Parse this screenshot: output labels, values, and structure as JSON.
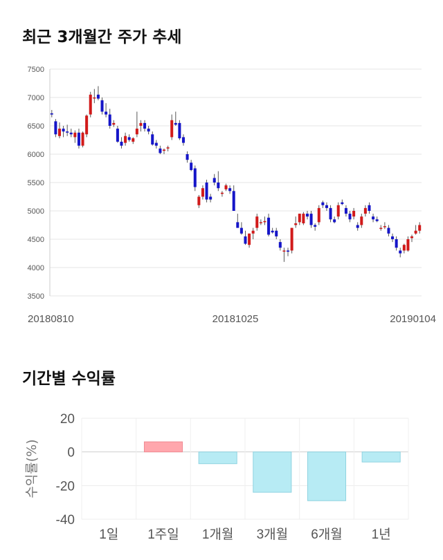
{
  "chart_data": [
    {
      "type": "candlestick",
      "title": "최근 3개월간 주가 추세",
      "y_ticks": [
        "7500",
        "7000",
        "6500",
        "6000",
        "5500",
        "5000",
        "4500",
        "4000",
        "3500"
      ],
      "ylim": [
        3500,
        7500
      ],
      "x_ticks": [
        "20180810",
        "20181025",
        "20190104"
      ],
      "up_color": "#d11a1a",
      "down_color": "#1515c8",
      "candles": [
        [
          6720,
          6780,
          6650,
          6700
        ],
        [
          6580,
          6620,
          6300,
          6350
        ],
        [
          6320,
          6560,
          6280,
          6450
        ],
        [
          6450,
          6500,
          6300,
          6400
        ],
        [
          6400,
          6520,
          6320,
          6380
        ],
        [
          6380,
          6450,
          6300,
          6350
        ],
        [
          6300,
          6420,
          6200,
          6380
        ],
        [
          6380,
          6450,
          6100,
          6150
        ],
        [
          6150,
          6400,
          6120,
          6380
        ],
        [
          6350,
          6700,
          6300,
          6680
        ],
        [
          6700,
          7100,
          6650,
          7050
        ],
        [
          7000,
          7150,
          6900,
          7000
        ],
        [
          7050,
          7200,
          6950,
          6980
        ],
        [
          6950,
          7000,
          6700,
          6750
        ],
        [
          6750,
          6900,
          6650,
          6700
        ],
        [
          6700,
          6800,
          6450,
          6500
        ],
        [
          6520,
          6600,
          6480,
          6550
        ],
        [
          6450,
          6500,
          6200,
          6220
        ],
        [
          6220,
          6300,
          6100,
          6150
        ],
        [
          6200,
          6380,
          6150,
          6320
        ],
        [
          6300,
          6350,
          6220,
          6250
        ],
        [
          6220,
          6300,
          6180,
          6280
        ],
        [
          6350,
          6750,
          6300,
          6450
        ],
        [
          6500,
          6600,
          6400,
          6550
        ],
        [
          6550,
          6600,
          6400,
          6450
        ],
        [
          6450,
          6500,
          6350,
          6400
        ],
        [
          6350,
          6400,
          6150,
          6170
        ],
        [
          6200,
          6250,
          6100,
          6150
        ],
        [
          6100,
          6150,
          6000,
          6020
        ],
        [
          6060,
          6100,
          6000,
          6080
        ],
        [
          6100,
          6150,
          6050,
          6120
        ],
        [
          6300,
          6700,
          6250,
          6600
        ],
        [
          6550,
          6750,
          6500,
          6520
        ],
        [
          6550,
          6600,
          6250,
          6280
        ],
        [
          6300,
          6350,
          6150,
          6200
        ],
        [
          6000,
          6050,
          5850,
          5900
        ],
        [
          5850,
          5900,
          5700,
          5720
        ],
        [
          5750,
          5800,
          5350,
          5420
        ],
        [
          5100,
          5280,
          5050,
          5250
        ],
        [
          5250,
          5450,
          5200,
          5400
        ],
        [
          5500,
          5550,
          5150,
          5200
        ],
        [
          5250,
          5300,
          5150,
          5200
        ],
        [
          5580,
          5650,
          5450,
          5500
        ],
        [
          5500,
          5700,
          5350,
          5400
        ],
        [
          5300,
          5350,
          5250,
          5320
        ],
        [
          5380,
          5480,
          5350,
          5450
        ],
        [
          5400,
          5450,
          5300,
          5350
        ],
        [
          5350,
          5450,
          5000,
          5000
        ],
        [
          4800,
          4950,
          4700,
          4700
        ],
        [
          4700,
          4800,
          4580,
          4600
        ],
        [
          4550,
          4650,
          4400,
          4420
        ],
        [
          4400,
          4600,
          4350,
          4600
        ],
        [
          4600,
          4700,
          4500,
          4650
        ],
        [
          4700,
          4950,
          4650,
          4900
        ],
        [
          4800,
          4850,
          4750,
          4800
        ],
        [
          4800,
          4900,
          4750,
          4820
        ],
        [
          4880,
          4950,
          4550,
          4580
        ],
        [
          4650,
          4700,
          4600,
          4620
        ],
        [
          4650,
          4700,
          4500,
          4550
        ],
        [
          4450,
          4500,
          4300,
          4350
        ],
        [
          4300,
          4350,
          4100,
          4300
        ],
        [
          4300,
          4350,
          4200,
          4280
        ],
        [
          4300,
          4700,
          4250,
          4700
        ],
        [
          4750,
          4900,
          4700,
          4780
        ],
        [
          4800,
          4950,
          4750,
          4950
        ],
        [
          4780,
          4980,
          4750,
          4950
        ],
        [
          4950,
          5000,
          4850,
          4900
        ],
        [
          4950,
          5000,
          4700,
          4750
        ],
        [
          4750,
          4780,
          4650,
          4720
        ],
        [
          4800,
          5100,
          4750,
          5050
        ],
        [
          5150,
          5180,
          5050,
          5100
        ],
        [
          5100,
          5150,
          5000,
          5050
        ],
        [
          5050,
          5100,
          4800,
          4850
        ],
        [
          4850,
          4900,
          4780,
          4800
        ],
        [
          4900,
          5150,
          4850,
          5100
        ],
        [
          5150,
          5200,
          5100,
          5120
        ],
        [
          5050,
          5100,
          4900,
          4950
        ],
        [
          4950,
          5000,
          4800,
          4850
        ],
        [
          4900,
          5050,
          4850,
          5000
        ],
        [
          4750,
          4800,
          4650,
          4700
        ],
        [
          4750,
          4950,
          4700,
          4900
        ],
        [
          4950,
          5100,
          4900,
          5050
        ],
        [
          5100,
          5150,
          4950,
          5000
        ],
        [
          4900,
          4950,
          4800,
          4850
        ],
        [
          4850,
          4900,
          4800,
          4820
        ],
        [
          4700,
          4750,
          4650,
          4700
        ],
        [
          4720,
          4800,
          4680,
          4730
        ],
        [
          4700,
          4750,
          4550,
          4600
        ],
        [
          4550,
          4600,
          4450,
          4500
        ],
        [
          4500,
          4550,
          4300,
          4350
        ],
        [
          4300,
          4350,
          4180,
          4250
        ],
        [
          4300,
          4420,
          4250,
          4400
        ],
        [
          4300,
          4550,
          4280,
          4500
        ],
        [
          4520,
          4580,
          4450,
          4550
        ],
        [
          4600,
          4750,
          4580,
          4650
        ],
        [
          4650,
          4800,
          4600,
          4750
        ]
      ]
    },
    {
      "type": "bar",
      "title": "기간별 수익률",
      "ylabel": "수익률(%)",
      "categories": [
        "1일",
        "1주일",
        "1개월",
        "3개월",
        "6개월",
        "1년"
      ],
      "values": [
        0,
        6,
        -7,
        -24,
        -29,
        -6
      ],
      "ylim": [
        -40,
        20
      ],
      "y_ticks": [
        "20",
        "0",
        "-20",
        "-40"
      ],
      "positive_color": "#ffa7ad",
      "negative_color": "#b7ebf4"
    }
  ]
}
